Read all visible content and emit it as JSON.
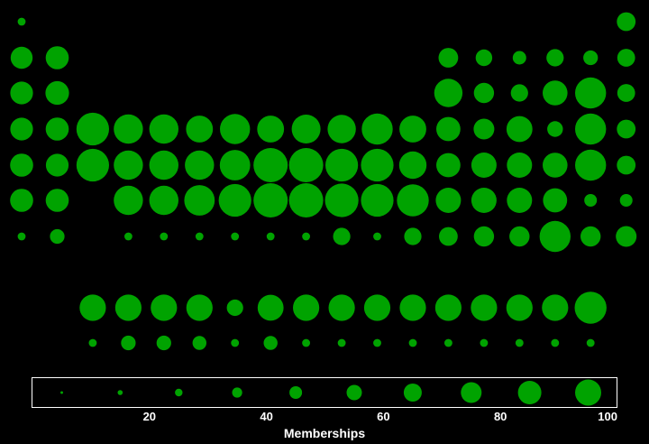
{
  "chart_data": {
    "type": "scatter",
    "title": "",
    "xlabel": "Memberships",
    "ylabel": "",
    "grid": false,
    "legend": "bottom",
    "colors": {
      "background": "#000000",
      "marker": "#00a300",
      "legend_frame": "#ffffff",
      "text": "#ffffff"
    },
    "x_ticks": [
      20,
      40,
      60,
      80,
      100
    ],
    "x_range": [
      0,
      100
    ],
    "size_legend_values": [
      5,
      15,
      25,
      35,
      45,
      55,
      65,
      75,
      85,
      95
    ],
    "rows": [
      {
        "row": 1,
        "values": {
          "1": 6,
          "18": 33
        }
      },
      {
        "row": 2,
        "values": {
          "1": 45,
          "2": 50,
          "13": 36,
          "14": 26,
          "15": 17,
          "16": 28,
          "17": 20,
          "18": 30
        }
      },
      {
        "row": 3,
        "values": {
          "1": 48,
          "2": 52,
          "13": 75,
          "14": 38,
          "15": 28,
          "16": 58,
          "17": 90,
          "18": 30
        }
      },
      {
        "row": 4,
        "values": {
          "1": 48,
          "2": 50,
          "3": 100,
          "4": 80,
          "5": 80,
          "6": 68,
          "7": 85,
          "8": 68,
          "9": 78,
          "10": 75,
          "11": 90,
          "12": 68,
          "13": 55,
          "14": 40,
          "15": 63,
          "16": 23,
          "17": 90,
          "18": 33
        }
      },
      {
        "row": 5,
        "values": {
          "1": 50,
          "2": 48,
          "3": 100,
          "4": 80,
          "5": 80,
          "6": 80,
          "7": 87,
          "8": 110,
          "9": 110,
          "10": 100,
          "11": 100,
          "12": 70,
          "13": 55,
          "14": 60,
          "15": 60,
          "16": 58,
          "17": 90,
          "18": 33
        }
      },
      {
        "row": 6,
        "values": {
          "1": 50,
          "2": 50,
          "4": 80,
          "5": 80,
          "6": 87,
          "7": 100,
          "8": 110,
          "9": 110,
          "10": 105,
          "11": 100,
          "12": 95,
          "13": 60,
          "14": 60,
          "15": 60,
          "16": 55,
          "17": 15,
          "18": 15
        }
      },
      {
        "row": 7,
        "values": {
          "1": 6,
          "2": 20,
          "4": 6,
          "5": 6,
          "6": 6,
          "7": 6,
          "8": 6,
          "9": 6,
          "10": 28,
          "11": 6,
          "12": 28,
          "13": 33,
          "14": 38,
          "15": 38,
          "16": 90,
          "17": 38,
          "18": 40
        }
      },
      {
        "row": 9,
        "values": {
          "3": 65,
          "4": 65,
          "5": 65,
          "6": 65,
          "7": 25,
          "8": 63,
          "9": 65,
          "10": 65,
          "11": 65,
          "12": 65,
          "13": 65,
          "14": 65,
          "15": 65,
          "16": 65,
          "17": 95
        }
      },
      {
        "row": 10,
        "values": {
          "3": 6,
          "4": 20,
          "5": 20,
          "6": 18,
          "7": 6,
          "8": 18,
          "9": 6,
          "10": 6,
          "11": 6,
          "12": 6,
          "13": 6,
          "14": 6,
          "15": 6,
          "16": 6,
          "17": 6
        }
      }
    ]
  }
}
